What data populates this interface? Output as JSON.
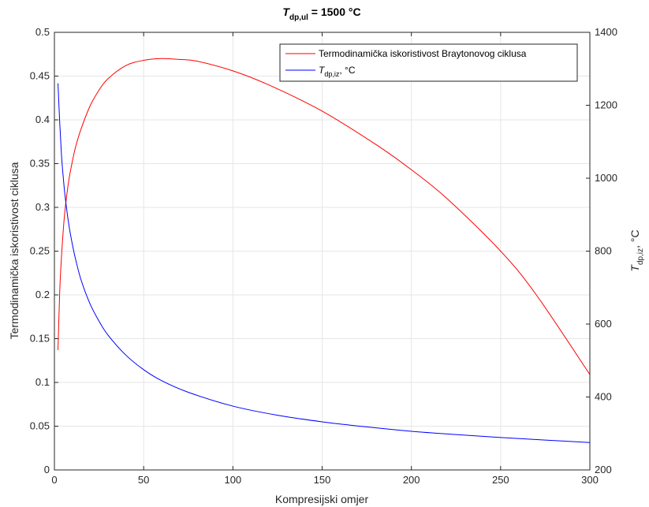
{
  "chart_data": {
    "type": "line",
    "title": {
      "main": "T",
      "sub": "dp,ul",
      "rest": " = 1500 °C"
    },
    "xlabel": "Kompresijski omjer",
    "ylabel_left": "Termodinamička iskoristivost ciklusa",
    "ylabel_right": {
      "main": "T",
      "sub": "dp,iz",
      "rest": ", °C"
    },
    "xlim": [
      0,
      300
    ],
    "ylim_left": [
      0,
      0.5
    ],
    "ylim_right": [
      200,
      1400
    ],
    "x_ticks": [
      "0",
      "50",
      "100",
      "150",
      "200",
      "250",
      "300"
    ],
    "y_left_ticks": [
      "0",
      "0.05",
      "0.1",
      "0.15",
      "0.2",
      "0.25",
      "0.3",
      "0.35",
      "0.4",
      "0.45",
      "0.5"
    ],
    "y_right_ticks": [
      "200",
      "400",
      "600",
      "800",
      "1000",
      "1200",
      "1400"
    ],
    "grid": true,
    "legend_position": "top-right",
    "series": [
      {
        "name": "Termodinamička iskoristivost Braytonovog ciklusa",
        "axis": "left",
        "color": "#ff0000",
        "x": [
          2,
          3,
          4,
          5,
          6,
          8,
          10,
          12,
          15,
          20,
          25,
          30,
          40,
          50,
          60,
          70,
          80,
          100,
          120,
          150,
          180,
          200,
          220,
          250,
          270,
          300
        ],
        "y": [
          0.137,
          0.205,
          0.245,
          0.275,
          0.298,
          0.33,
          0.352,
          0.37,
          0.39,
          0.416,
          0.434,
          0.447,
          0.462,
          0.468,
          0.47,
          0.469,
          0.467,
          0.456,
          0.44,
          0.41,
          0.372,
          0.343,
          0.31,
          0.25,
          0.2,
          0.109
        ]
      },
      {
        "name": "T_dp,iz, °C",
        "legend": {
          "main": "T",
          "sub": "dp,iz",
          "rest": ", °C"
        },
        "axis": "right",
        "color": "#0000ff",
        "x": [
          2,
          3,
          4,
          5,
          6,
          8,
          10,
          12,
          15,
          20,
          25,
          30,
          40,
          50,
          60,
          75,
          100,
          125,
          150,
          175,
          200,
          225,
          250,
          275,
          300
        ],
        "y": [
          1260,
          1150,
          1060,
          1000,
          950,
          875,
          820,
          775,
          720,
          655,
          608,
          570,
          515,
          475,
          445,
          413,
          375,
          350,
          332,
          318,
          306,
          297,
          289,
          282,
          275
        ]
      }
    ]
  }
}
